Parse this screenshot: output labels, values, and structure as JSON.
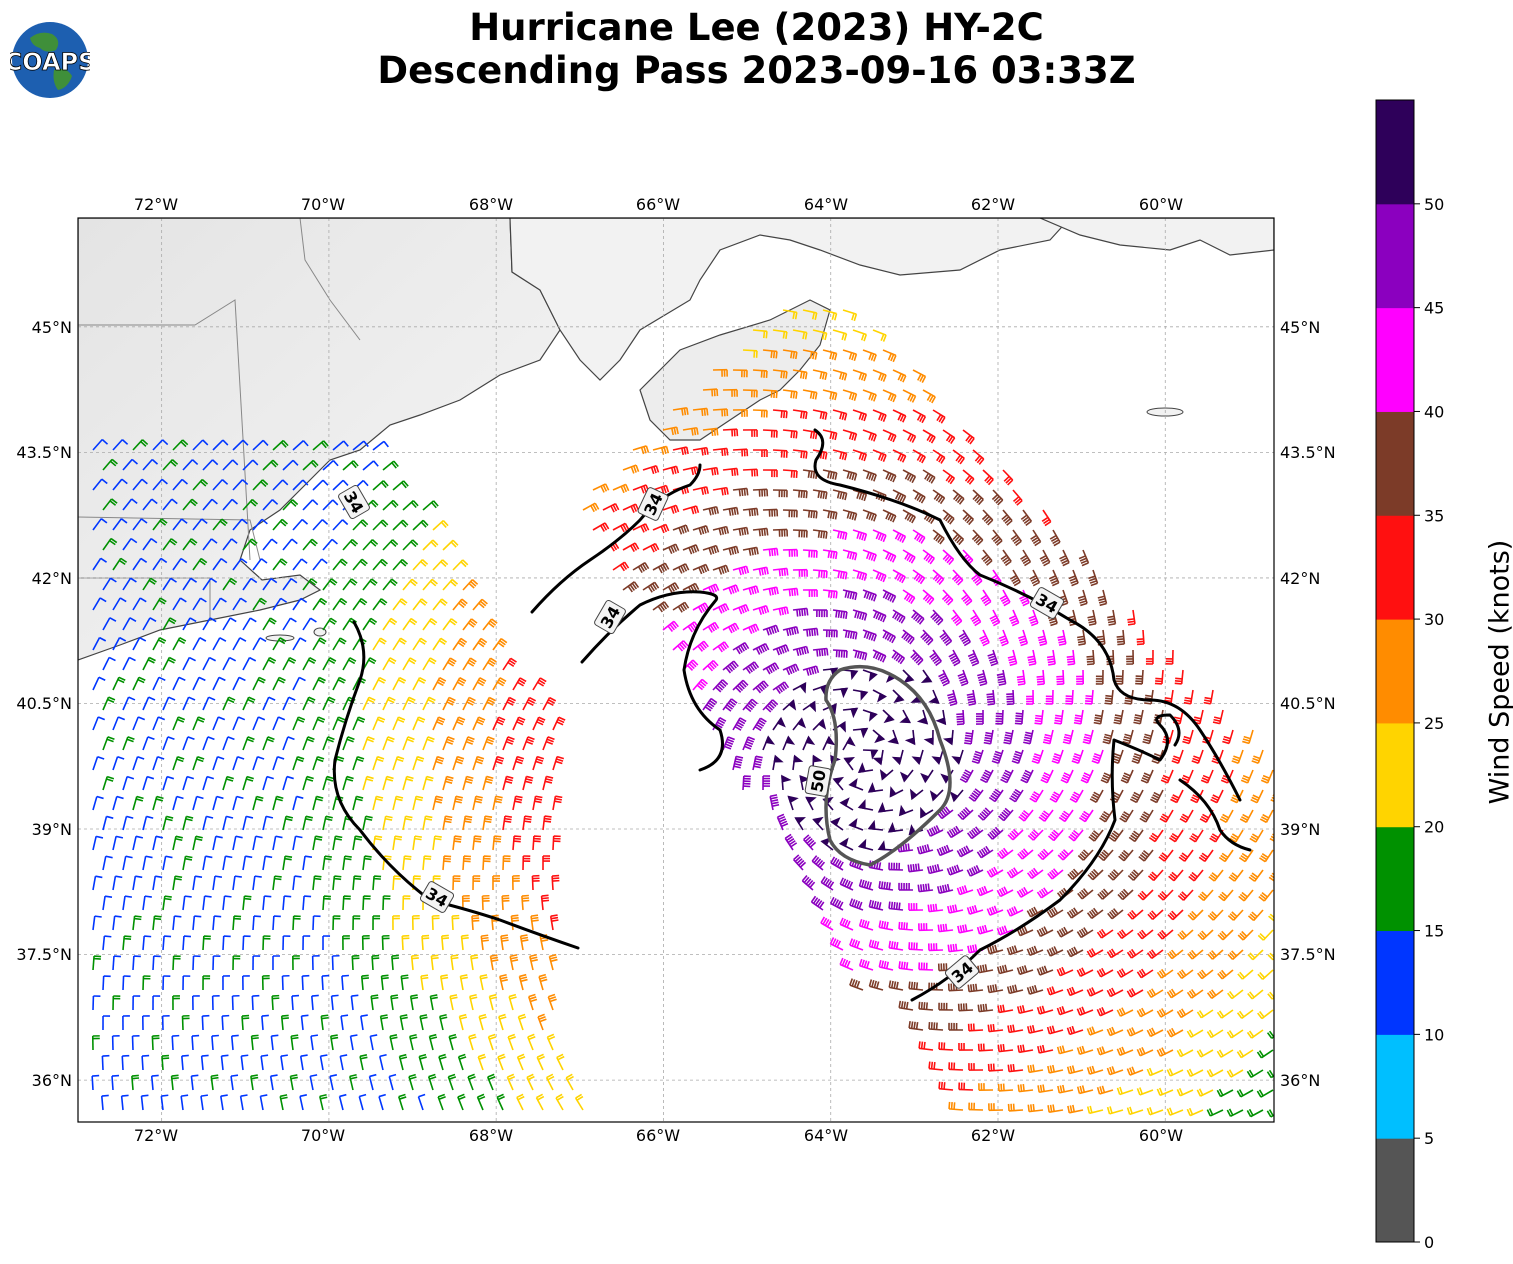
{
  "title_line1": "Hurricane Lee (2023) HY-2C",
  "title_line2": "Descending Pass 2023-09-16 03:33Z",
  "logo_text": "COAPS",
  "lon_ticks": [
    "72°W",
    "70°W",
    "68°W",
    "66°W",
    "64°W",
    "62°W",
    "60°W"
  ],
  "lat_ticks": [
    "45°N",
    "43.5°N",
    "42°N",
    "40.5°N",
    "39°N",
    "37.5°N",
    "36°N"
  ],
  "colorbar": {
    "label": "Wind Speed (knots)",
    "ticks": [
      "0",
      "5",
      "10",
      "15",
      "20",
      "25",
      "30",
      "35",
      "40",
      "45",
      "50"
    ],
    "colors": [
      "#555555",
      "#00bfff",
      "#0036ff",
      "#009100",
      "#ffd400",
      "#ff8c00",
      "#ff1010",
      "#7c3b28",
      "#ff00ff",
      "#8b00bf",
      "#2e005a"
    ]
  },
  "contour_labels": [
    "34",
    "34",
    "34",
    "34",
    "34",
    "34",
    "50"
  ],
  "map_data": {
    "lon_range": [
      -73,
      -58.7
    ],
    "lat_range": [
      35.5,
      46.3
    ],
    "lon_ticks_deg": [
      -72,
      -70,
      -68,
      -66,
      -64,
      -62,
      -60
    ],
    "lat_ticks_deg": [
      45,
      43.5,
      42,
      40.5,
      39,
      37.5,
      36
    ],
    "storm_center": {
      "lon": -63.6,
      "lat": 39.9
    },
    "contours_kt": [
      34,
      50
    ]
  }
}
